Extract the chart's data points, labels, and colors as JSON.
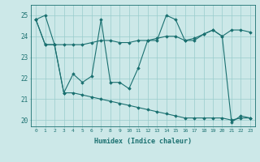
{
  "title": "",
  "xlabel": "Humidex (Indice chaleur)",
  "ylabel": "",
  "bg_color": "#cce8e8",
  "line_color": "#1a7070",
  "grid_color": "#99cccc",
  "ylim": [
    19.7,
    25.5
  ],
  "xlim": [
    -0.5,
    23.5
  ],
  "yticks": [
    20,
    21,
    22,
    23,
    24,
    25
  ],
  "xticks": [
    0,
    1,
    2,
    3,
    4,
    5,
    6,
    7,
    8,
    9,
    10,
    11,
    12,
    13,
    14,
    15,
    16,
    17,
    18,
    19,
    20,
    21,
    22,
    23
  ],
  "line1": [
    24.8,
    25.0,
    23.6,
    21.3,
    22.2,
    21.8,
    22.1,
    24.8,
    21.8,
    21.8,
    21.5,
    22.5,
    23.8,
    23.8,
    25.0,
    24.8,
    23.8,
    23.8,
    24.1,
    24.3,
    24.0,
    19.9,
    20.2,
    20.1
  ],
  "line2": [
    24.8,
    23.6,
    23.6,
    23.6,
    23.6,
    23.6,
    23.7,
    23.8,
    23.8,
    23.7,
    23.7,
    23.8,
    23.8,
    23.9,
    24.0,
    24.0,
    23.8,
    23.9,
    24.1,
    24.3,
    24.0,
    24.3,
    24.3,
    24.2
  ],
  "line3": [
    24.8,
    23.6,
    23.6,
    21.3,
    21.3,
    21.2,
    21.1,
    21.0,
    20.9,
    20.8,
    20.7,
    20.6,
    20.5,
    20.4,
    20.3,
    20.2,
    20.1,
    20.1,
    20.1,
    20.1,
    20.1,
    20.0,
    20.1,
    20.1
  ]
}
